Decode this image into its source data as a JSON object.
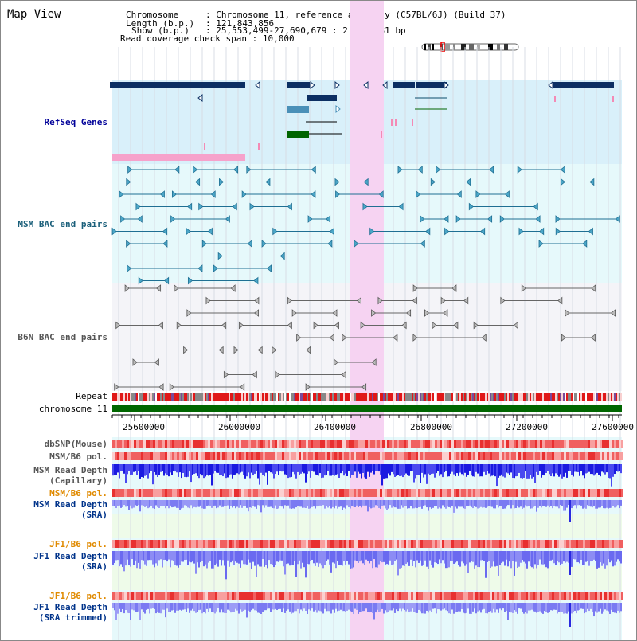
{
  "title": "Map View",
  "info": {
    "chromosome_label": "Chromosome",
    "chromosome_value": "Chromosome 11, reference assembly (C57BL/6J) (Build 37)",
    "length_label": "Length (b.p.)",
    "length_value": "121,843,856",
    "show_label": "Show (b.p.)",
    "show_value": "25,553,499-27,690,679 : 2,137,181 bp",
    "coverage_label": "Read coverage check span",
    "coverage_value": "10,000"
  },
  "tracks": {
    "refseq": "RefSeq Genes",
    "msm_bac": "MSM BAC end pairs",
    "b6n_bac": "B6N BAC end pairs",
    "repeat": "Repeat",
    "chromosome": "chromosome 11",
    "dbsnp": "dbSNP(Mouse)",
    "msm_b6_pol": "MSM/B6 pol.",
    "msm_depth_cap_1": "MSM Read Depth",
    "msm_depth_cap_2": "(Capillary)",
    "msm_b6_pol_2": "MSM/B6 pol.",
    "msm_depth_sra_1": "MSM Read Depth",
    "msm_depth_sra_2": "(SRA)",
    "jf1_b6_pol": "JF1/B6 pol.",
    "jf1_depth_sra_1": "JF1 Read Depth",
    "jf1_depth_sra_2": "(SRA)",
    "jf1_b6_pol_2": "JF1/B6 pol.",
    "jf1_depth_trim_1": "JF1 Read Depth",
    "jf1_depth_trim_2": "(SRA trimmed)"
  },
  "axis": {
    "ticks": [
      "25600000",
      "26000000",
      "26400000",
      "26800000",
      "27200000",
      "27600000"
    ]
  },
  "colors": {
    "highlight": "#f6d3f2",
    "refseq_bg": "#d9f0fa",
    "bac_bg": "#e6f9fb",
    "gene_dark": "#0c2f63",
    "gene_green": "#006400",
    "chromosome_bar": "#006600",
    "depth_blue": "#3333ee"
  }
}
